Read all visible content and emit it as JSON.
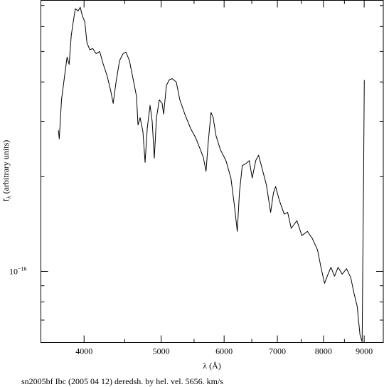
{
  "chart_data": {
    "type": "line",
    "x_label": "λ (Å)",
    "y_label": {
      "symbol": "f",
      "subscript": "λ",
      "text": "(arbitrary units)"
    },
    "caption": "sn2005bf Ibc (2005 04 12) deredsh. by hel. vel.  5656. km/s",
    "xscale": "log",
    "yscale": "log",
    "grid": false,
    "xlim": [
      3530,
      9512
    ],
    "ylim": [
      5.94e-17,
      7.27e-16
    ],
    "xticks": [
      4000,
      5000,
      6000,
      7000,
      8000,
      9000
    ],
    "xticks_minor": [
      4500,
      5500,
      6500,
      7500,
      8500
    ],
    "yticks": [
      {
        "value": 1e-16,
        "label": "10",
        "exponent": "−16"
      }
    ],
    "yticks_minor": [
      7e-17,
      8e-17,
      9e-17,
      2e-16,
      3e-16,
      4e-16,
      5e-16,
      6e-16,
      7e-16
    ],
    "series": [
      {
        "color": "#000000",
        "x": [
          3713,
          3723,
          3747,
          3777,
          3808,
          3831,
          3854,
          3877,
          3900,
          3932,
          3956,
          3980,
          4008,
          4034,
          4068,
          4101,
          4143,
          4185,
          4229,
          4273,
          4317,
          4352,
          4388,
          4433,
          4478,
          4515,
          4561,
          4609,
          4656,
          4676,
          4705,
          4743,
          4773,
          4803,
          4842,
          4872,
          4902,
          4933,
          4973,
          5014,
          5036,
          5077,
          5118,
          5161,
          5224,
          5278,
          5355,
          5444,
          5533,
          5648,
          5694,
          5730,
          5777,
          5813,
          5861,
          5934,
          6032,
          6119,
          6183,
          6233,
          6272,
          6324,
          6390,
          6454,
          6508,
          6575,
          6630,
          6712,
          6782,
          6865,
          6922,
          6965,
          7036,
          7140,
          7212,
          7287,
          7407,
          7514,
          7638,
          7748,
          7863,
          7942,
          8024,
          8106,
          8174,
          8259,
          8345,
          8446,
          8552,
          8658,
          8730,
          8819,
          8891,
          8947,
          8984,
          9003
        ],
        "values": [
          2.81e-16,
          2.64e-16,
          3.51e-16,
          4.1e-16,
          4.8e-16,
          4.55e-16,
          5.61e-16,
          6.22e-16,
          6.84e-16,
          6.73e-16,
          6.91e-16,
          6.49e-16,
          6.22e-16,
          5.32e-16,
          5.06e-16,
          5.11e-16,
          4.92e-16,
          5e-16,
          4.55e-16,
          4.21e-16,
          3.79e-16,
          3.42e-16,
          4e-16,
          4.68e-16,
          4.92e-16,
          4.98e-16,
          4.68e-16,
          4.1e-16,
          3.6e-16,
          2.92e-16,
          3.08e-16,
          2.78e-16,
          2.22e-16,
          2.85e-16,
          3.37e-16,
          3e-16,
          2.29e-16,
          3.08e-16,
          3.51e-16,
          3.42e-16,
          3.16e-16,
          3.9e-16,
          4.06e-16,
          4.1e-16,
          4e-16,
          3.51e-16,
          3.16e-16,
          2.85e-16,
          2.64e-16,
          2.31e-16,
          2.08e-16,
          2.57e-16,
          3.2e-16,
          3.08e-16,
          2.7e-16,
          2.44e-16,
          2.25e-16,
          1.98e-16,
          1.61e-16,
          1.34e-16,
          1.78e-16,
          2.17e-16,
          2.2e-16,
          2.25e-16,
          1.98e-16,
          2.25e-16,
          2.34e-16,
          2.08e-16,
          1.88e-16,
          1.54e-16,
          1.78e-16,
          1.86e-16,
          1.69e-16,
          1.52e-16,
          1.54e-16,
          1.37e-16,
          1.45e-16,
          1.3e-16,
          1.34e-16,
          1.27e-16,
          1.17e-16,
          1.03e-16,
          9.16e-17,
          9.8e-17,
          1.03e-16,
          9.65e-17,
          1.03e-16,
          9.8e-17,
          1.02e-16,
          9.55e-17,
          8.61e-17,
          7.75e-17,
          6.29e-17,
          5.97e-17,
          1.98e-16,
          4.06e-16
        ]
      }
    ]
  }
}
